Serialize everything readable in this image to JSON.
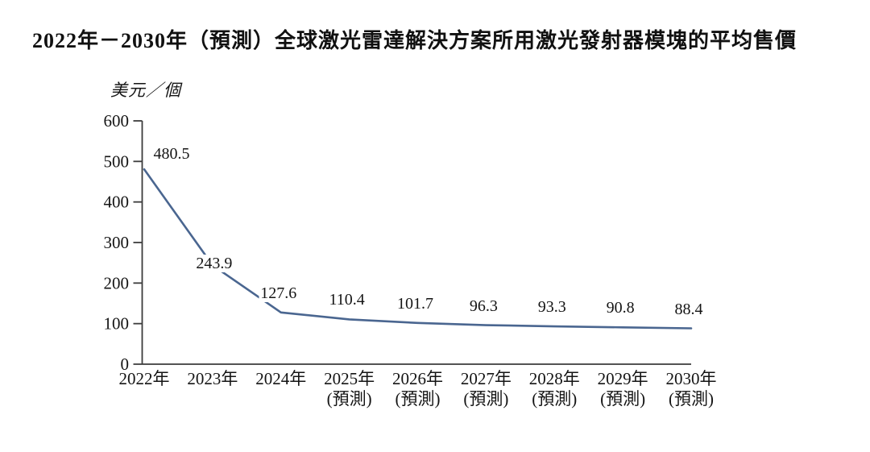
{
  "chart_data": {
    "type": "line",
    "title": "2022年－2030年（預測）全球激光雷達解決方案所用激光發射器模塊的平均售價",
    "unit_label": "美元／個",
    "categories": [
      "2022年",
      "2023年",
      "2024年",
      "2025年",
      "2026年",
      "2027年",
      "2028年",
      "2029年",
      "2030年"
    ],
    "category_subs": [
      "",
      "",
      "",
      "(預測)",
      "(預測)",
      "(預測)",
      "(預測)",
      "(預測)",
      "(預測)"
    ],
    "values": [
      480.5,
      243.9,
      127.6,
      110.4,
      101.7,
      96.3,
      93.3,
      90.8,
      88.4
    ],
    "data_labels": [
      "480.5",
      "243.9",
      "127.6",
      "110.4",
      "101.7",
      "96.3",
      "93.3",
      "90.8",
      "88.4"
    ],
    "ylim": [
      0,
      600
    ],
    "yticks": [
      0,
      100,
      200,
      300,
      400,
      500,
      600
    ],
    "grid": false,
    "legend": "none",
    "line_color": "#4a6690",
    "axis_color": "#3c3c3c",
    "text_color": "#141414"
  }
}
